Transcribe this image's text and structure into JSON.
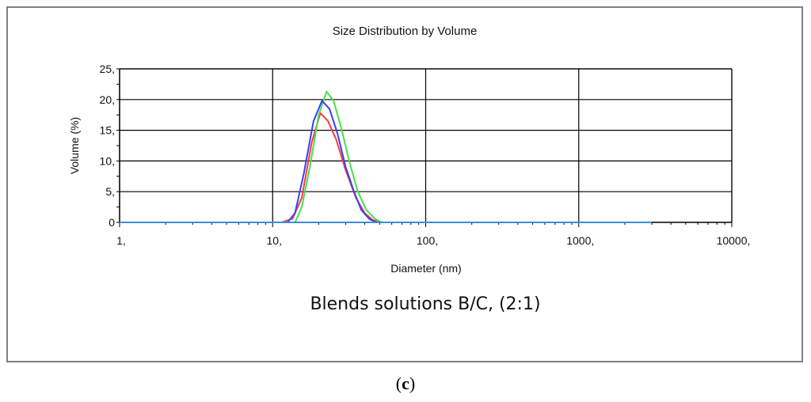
{
  "figure": {
    "caption": "Blends solutions B/C, (2:1)",
    "panel_paren_open": "(",
    "panel_letter": "c",
    "panel_paren_close": ")"
  },
  "chart_data": {
    "type": "line",
    "title": "Size Distribution by Volume",
    "xlabel": "Diameter (nm)",
    "ylabel": "Volume (%)",
    "x_scale": "log",
    "xlim": [
      1,
      10000
    ],
    "ylim": [
      0,
      25
    ],
    "x_ticks": [
      1,
      10,
      100,
      1000,
      10000
    ],
    "x_tick_labels": [
      "1,",
      "10,",
      "100,",
      "1000,",
      "10000,"
    ],
    "y_ticks": [
      0,
      5,
      10,
      15,
      20,
      25
    ],
    "y_tick_labels": [
      "0",
      "5,",
      "10,",
      "15,",
      "20,",
      "25,"
    ],
    "grid": true,
    "legend": "none",
    "series": [
      {
        "color": "#ff3b3b",
        "x": [
          1,
          11.5,
          13.5,
          15.5,
          18,
          20.5,
          23,
          26,
          30,
          35,
          40,
          45,
          50,
          3000
        ],
        "y": [
          0,
          0,
          0.6,
          4,
          13,
          17.8,
          16.5,
          13.5,
          8.5,
          4,
          1.5,
          0.4,
          0,
          0
        ]
      },
      {
        "color": "#4ade4a",
        "x": [
          1,
          14,
          15.5,
          17.5,
          20,
          22.5,
          25,
          28,
          32,
          36,
          41,
          47,
          52,
          3000
        ],
        "y": [
          0,
          0,
          2.5,
          9,
          17.5,
          21.3,
          19.8,
          15.5,
          9.5,
          5,
          2,
          0.5,
          0,
          0
        ]
      },
      {
        "color": "#3b3bff",
        "x": [
          1,
          12.5,
          14,
          16,
          18.5,
          21,
          23.5,
          26.5,
          30,
          34,
          38,
          43,
          48,
          3000
        ],
        "y": [
          0,
          0,
          1.5,
          8,
          16.5,
          19.8,
          18.5,
          14.5,
          9,
          5,
          2,
          0.5,
          0,
          0
        ]
      },
      {
        "color": "#3b8fd8",
        "x": [
          1,
          3000
        ],
        "y": [
          0,
          0
        ]
      }
    ]
  }
}
